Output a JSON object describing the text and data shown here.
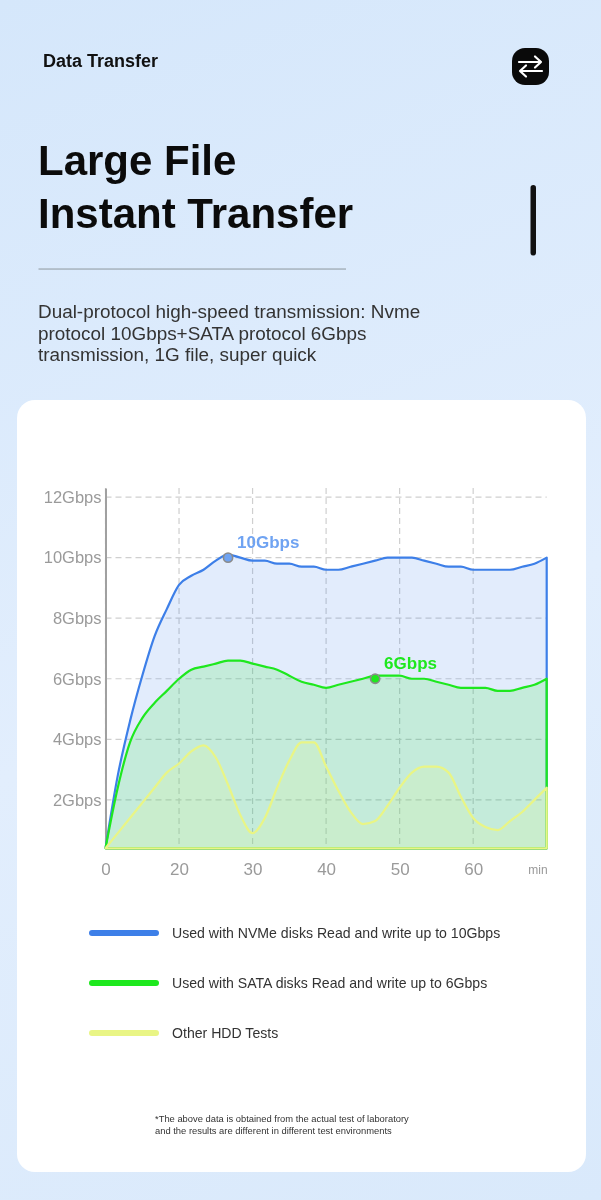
{
  "chart_data": {
    "type": "area",
    "title": "Large File Instant Transfer",
    "subtitle": "Dual-protocol high-speed transmission: Nvme protocol 10Gbps+SATA protocol 6Gbps transmission, 1G file, super quick",
    "xlabel": "min",
    "annotations": [
      "Data Transfer",
      "*The above data is obtained from the actual test of laboratory and the results are different in different test environments"
    ],
    "categories": [
      "0",
      null,
      null,
      null,
      null,
      null,
      "20",
      null,
      null,
      null,
      null,
      null,
      "30",
      null,
      null,
      null,
      null,
      null,
      "40",
      null,
      null,
      null,
      null,
      null,
      "50",
      null,
      null,
      null,
      null,
      null,
      "60",
      null,
      null,
      null,
      null,
      null,
      null
    ],
    "ylim": [
      0.4,
      12.3
    ],
    "yticks": [
      {
        "value": 2,
        "label": "2Gbps"
      },
      {
        "value": 4,
        "label": "4Gbps"
      },
      {
        "value": 6,
        "label": "6Gbps"
      },
      {
        "value": 8,
        "label": "8Gbps"
      },
      {
        "value": 10,
        "label": "10Gbps"
      },
      {
        "value": 12,
        "label": "12Gbps"
      }
    ],
    "grid": true,
    "legend": "bottom",
    "series": [
      {
        "name": "Used with NVMe disks Read and write up to 10Gbps",
        "color": "#3d7fe8",
        "values": [
          0.4,
          2.8,
          4.6,
          6.1,
          7.4,
          8.3,
          9.1,
          9.4,
          9.6,
          9.9,
          10.1,
          10.0,
          9.9,
          9.9,
          9.8,
          9.8,
          9.7,
          9.7,
          9.6,
          9.6,
          9.7,
          9.8,
          9.9,
          10.0,
          10.0,
          10.0,
          9.9,
          9.8,
          9.7,
          9.7,
          9.6,
          9.6,
          9.6,
          9.6,
          9.7,
          9.8,
          10.0
        ]
      },
      {
        "name": "Used with SATA disks Read and write up to 6Gbps",
        "color": "#1ee81e",
        "values": [
          0.4,
          2.4,
          3.9,
          4.7,
          5.2,
          5.6,
          6.0,
          6.3,
          6.4,
          6.5,
          6.6,
          6.6,
          6.5,
          6.4,
          6.3,
          6.1,
          5.9,
          5.8,
          5.7,
          5.8,
          5.9,
          6.0,
          6.1,
          6.1,
          6.1,
          6.0,
          6.0,
          5.9,
          5.8,
          5.7,
          5.7,
          5.7,
          5.6,
          5.6,
          5.7,
          5.8,
          6.0
        ]
      },
      {
        "name": "Other HDD Tests",
        "color": "#e9f585",
        "values": [
          0.4,
          0.9,
          1.4,
          1.9,
          2.4,
          2.9,
          3.2,
          3.6,
          3.8,
          3.4,
          2.5,
          1.5,
          0.9,
          1.4,
          2.4,
          3.3,
          3.9,
          3.9,
          3.1,
          2.3,
          1.6,
          1.2,
          1.3,
          1.8,
          2.4,
          2.9,
          3.1,
          3.1,
          2.9,
          2.1,
          1.4,
          1.1,
          1.0,
          1.3,
          1.6,
          2.0,
          2.4
        ]
      },
      {
        "type": "scatter",
        "color": "#8a8a8a",
        "values": [
          null,
          null,
          null,
          null,
          null,
          null,
          null,
          null,
          null,
          null,
          10,
          null,
          null,
          null,
          null,
          null,
          null,
          null,
          null,
          null,
          null,
          null,
          6,
          null,
          null,
          null,
          null,
          null,
          null,
          null,
          null,
          null,
          null,
          null,
          null,
          null,
          null
        ],
        "colors": [
          null,
          null,
          null,
          null,
          null,
          null,
          null,
          null,
          null,
          null,
          "#6fa3f2",
          null,
          null,
          null,
          null,
          null,
          null,
          null,
          null,
          null,
          null,
          null,
          "#1ee81e",
          null,
          null,
          null,
          null,
          null,
          null,
          null,
          null,
          null,
          null,
          null,
          null,
          null,
          null
        ],
        "value_labels": [
          null,
          null,
          null,
          null,
          null,
          null,
          null,
          null,
          null,
          null,
          "10Gbps",
          null,
          null,
          null,
          null,
          null,
          null,
          null,
          null,
          null,
          null,
          null,
          "6Gbps",
          null,
          null,
          null,
          null,
          null,
          null,
          null,
          null,
          null,
          null,
          null,
          null,
          null,
          null
        ]
      }
    ]
  }
}
